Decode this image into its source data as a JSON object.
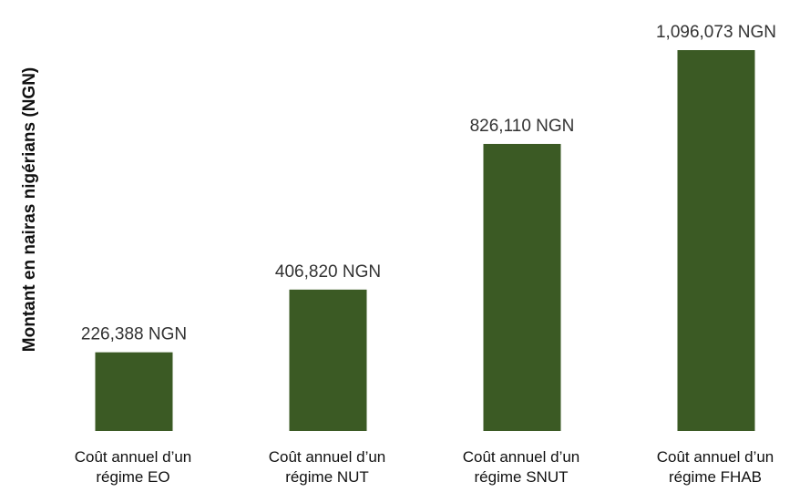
{
  "chart_data": {
    "type": "bar",
    "title": "",
    "xlabel": "",
    "ylabel": "Montant en nairas nigérians (NGN)",
    "categories": [
      [
        "Coût annuel d’un",
        "régime EO"
      ],
      [
        "Coût annuel d’un",
        "régime NUT"
      ],
      [
        "Coût annuel d’un",
        "régime SNUT"
      ],
      [
        "Coût annuel d’un",
        "régime FHAB"
      ]
    ],
    "values": [
      226388,
      406820,
      826110,
      1096073
    ],
    "data_labels": [
      "226,388 NGN",
      "406,820 NGN",
      "826,110 NGN",
      "1,096,073 NGN"
    ],
    "ylim": [
      0,
      1096073
    ],
    "grid": false,
    "legend": "none",
    "colors": {
      "bar": "#3b5a24"
    }
  }
}
